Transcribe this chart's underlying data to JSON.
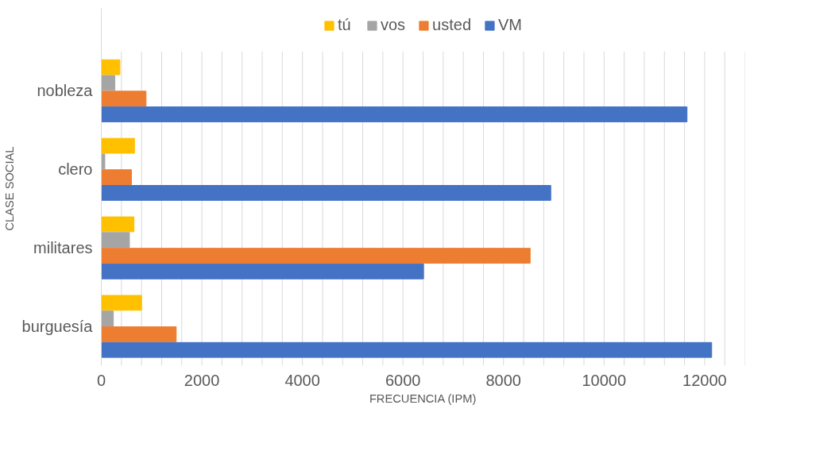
{
  "chart_data": {
    "type": "bar",
    "orientation": "horizontal",
    "xlabel": "FRECUENCIA (IPM)",
    "ylabel": "CLASE  SOCIAL",
    "categories": [
      "nobleza",
      "clero",
      "militares",
      "burguesía"
    ],
    "series": [
      {
        "name": "tú",
        "color": "#ffc000",
        "values": [
          370,
          660,
          650,
          800
        ]
      },
      {
        "name": "vos",
        "color": "#a5a5a5",
        "values": [
          270,
          70,
          560,
          240
        ]
      },
      {
        "name": "usted",
        "color": "#ed7d31",
        "values": [
          890,
          600,
          8530,
          1490
        ]
      },
      {
        "name": "VM",
        "color": "#4472c4",
        "values": [
          11650,
          8940,
          6410,
          12140
        ]
      }
    ],
    "xlim": [
      0,
      12800
    ],
    "xticks": [
      0,
      {
        "value": 400,
        "label": null
      },
      {
        "value": 800,
        "label": null
      },
      {
        "value": 1200,
        "label": null
      },
      {
        "value": 1600,
        "label": null
      },
      2000,
      {
        "value": 2400,
        "label": null
      },
      {
        "value": 2800,
        "label": null
      },
      {
        "value": 3200,
        "label": null
      },
      {
        "value": 3600,
        "label": null
      },
      4000,
      {
        "value": 4400,
        "label": null
      },
      {
        "value": 4800,
        "label": null
      },
      {
        "value": 5200,
        "label": null
      },
      {
        "value": 5600,
        "label": null
      },
      6000,
      {
        "value": 6400,
        "label": null
      },
      {
        "value": 6800,
        "label": null
      },
      {
        "value": 7200,
        "label": null
      },
      {
        "value": 7600,
        "label": null
      },
      8000,
      {
        "value": 8400,
        "label": null
      },
      {
        "value": 8800,
        "label": null
      },
      {
        "value": 9200,
        "label": null
      },
      {
        "value": 9600,
        "label": null
      },
      10000,
      {
        "value": 10400,
        "label": null
      },
      {
        "value": 10800,
        "label": null
      },
      {
        "value": 11200,
        "label": null
      },
      {
        "value": 11600,
        "label": null
      },
      12000,
      {
        "value": 12400,
        "label": null
      },
      {
        "value": 12800,
        "label": null
      }
    ],
    "grid": "x",
    "legend": "top"
  }
}
